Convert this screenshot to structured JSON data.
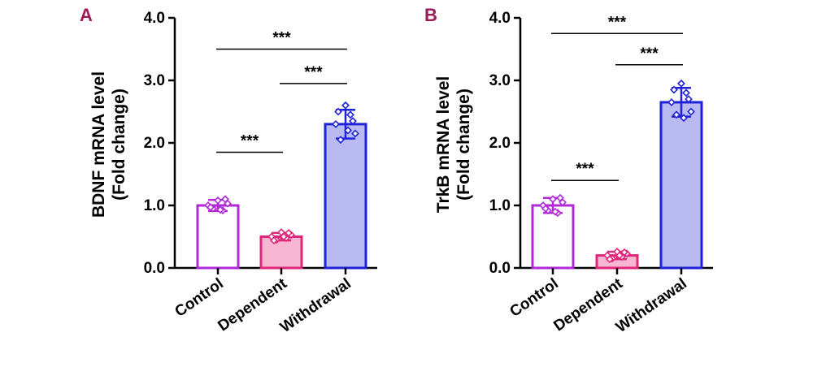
{
  "chart_data": [
    {
      "panel": "A",
      "type": "bar",
      "ylabel_line1": "BDNF mRNA level",
      "ylabel_line2": "(Fold change)",
      "ylim": [
        0,
        4
      ],
      "yticks": [
        "0.0",
        "1.0",
        "2.0",
        "3.0",
        "4.0"
      ],
      "categories": [
        "Control",
        "Dependent",
        "Withdrawal"
      ],
      "values": [
        1.0,
        0.5,
        2.3
      ],
      "errors": [
        0.09,
        0.06,
        0.23
      ],
      "points": [
        [
          1.0,
          0.95,
          1.08,
          0.92,
          1.03,
          0.97,
          1.1,
          0.93
        ],
        [
          0.5,
          0.45,
          0.57,
          0.48,
          0.53,
          0.44,
          0.56,
          0.5
        ],
        [
          2.3,
          2.05,
          2.6,
          2.45,
          2.15,
          2.5,
          2.35,
          2.2
        ]
      ],
      "significance": [
        {
          "from": 0,
          "to": 1,
          "label": "***",
          "y": 1.85
        },
        {
          "from": 1,
          "to": 2,
          "label": "***",
          "y": 2.95
        },
        {
          "from": 0,
          "to": 2,
          "label": "***",
          "y": 3.5
        }
      ]
    },
    {
      "panel": "B",
      "type": "bar",
      "ylabel_line1": "TrkB mRNA level",
      "ylabel_line2": "(Fold change)",
      "ylim": [
        0,
        4
      ],
      "yticks": [
        "0.0",
        "1.0",
        "2.0",
        "3.0",
        "4.0"
      ],
      "categories": [
        "Control",
        "Dependent",
        "Withdrawal"
      ],
      "values": [
        1.0,
        0.2,
        2.65
      ],
      "errors": [
        0.12,
        0.06,
        0.23
      ],
      "points": [
        [
          1.0,
          0.92,
          1.1,
          0.88,
          1.05,
          0.95,
          1.12,
          0.9
        ],
        [
          0.2,
          0.15,
          0.26,
          0.18,
          0.23,
          0.14,
          0.25,
          0.2
        ],
        [
          2.65,
          2.45,
          2.95,
          2.8,
          2.5,
          2.85,
          2.7,
          2.4
        ]
      ],
      "significance": [
        {
          "from": 0,
          "to": 1,
          "label": "***",
          "y": 1.4
        },
        {
          "from": 1,
          "to": 2,
          "label": "***",
          "y": 3.25
        },
        {
          "from": 0,
          "to": 2,
          "label": "***",
          "y": 3.75
        }
      ]
    }
  ],
  "colors": {
    "panel_letter": "#9b1b5a",
    "Control": {
      "stroke": "#b12ad6",
      "fill": "#ffffff"
    },
    "Dependent": {
      "stroke": "#e0267a",
      "fill": "#f7b6d2"
    },
    "Withdrawal": {
      "stroke": "#1f22d6",
      "fill": "#b9baf2"
    }
  }
}
